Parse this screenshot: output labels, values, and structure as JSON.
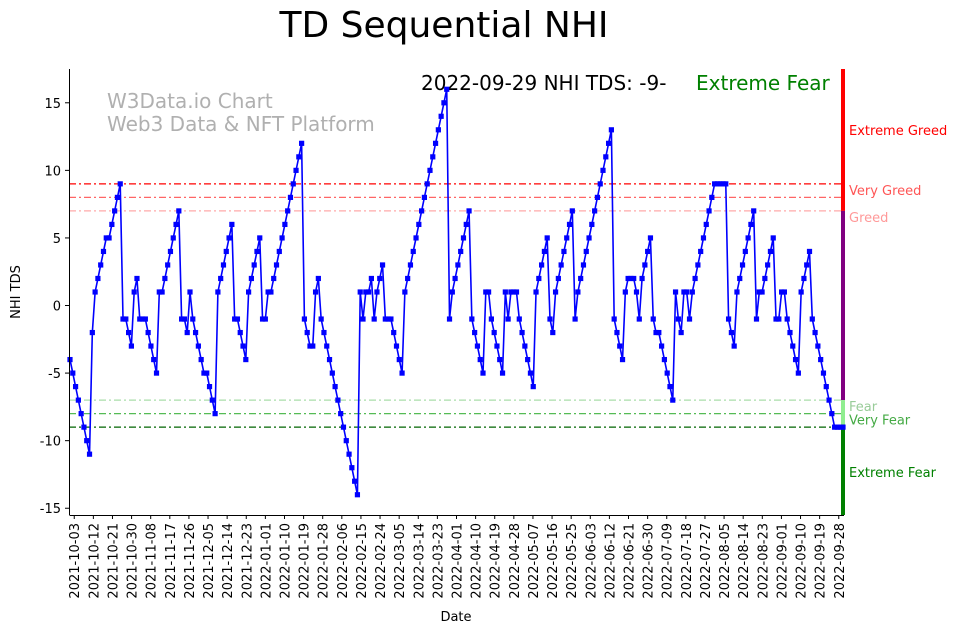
{
  "chart_data": {
    "type": "line",
    "title": "TD Sequential NHI",
    "xlabel": "Date",
    "ylabel": "NHI TDS",
    "xlim": [
      "2021-10-01",
      "2022-09-30"
    ],
    "ylim": [
      -15.5,
      17.5
    ],
    "y_ticks": [
      -15,
      -10,
      -5,
      0,
      5,
      10,
      15
    ],
    "x_ticks": [
      "2021-10-03",
      "2021-10-12",
      "2021-10-21",
      "2021-10-30",
      "2021-11-08",
      "2021-11-17",
      "2021-11-26",
      "2021-12-05",
      "2021-12-14",
      "2021-12-23",
      "2022-01-01",
      "2022-01-10",
      "2022-01-19",
      "2022-01-28",
      "2022-02-06",
      "2022-02-15",
      "2022-02-24",
      "2022-03-05",
      "2022-03-14",
      "2022-03-23",
      "2022-04-01",
      "2022-04-10",
      "2022-04-19",
      "2022-04-28",
      "2022-05-07",
      "2022-05-16",
      "2022-05-25",
      "2022-06-03",
      "2022-06-12",
      "2022-06-21",
      "2022-06-30",
      "2022-07-09",
      "2022-07-18",
      "2022-07-27",
      "2022-08-05",
      "2022-08-14",
      "2022-08-23",
      "2022-09-01",
      "2022-09-10",
      "2022-09-19",
      "2022-09-28"
    ],
    "grid": false,
    "watermark": [
      "W3Data.io Chart",
      "Web3 Data & NFT Platform"
    ],
    "status_text": "2022-09-29 NHI TDS: -9-",
    "status_label": "Extreme Fear",
    "status_color": "#008000",
    "line_color": "#0000ff",
    "levels": [
      {
        "value": 9,
        "label": "Very Greed",
        "color": "#ff0000",
        "label_color": "#ff5555"
      },
      {
        "value": 8,
        "label": "",
        "color": "#ff6666"
      },
      {
        "value": 7,
        "label": "Greed",
        "color": "#ffaaaa",
        "label_color": "#ff9999"
      },
      {
        "value": -7,
        "label": "Fear",
        "color": "#aaddaa",
        "label_color": "#99cc99"
      },
      {
        "value": -8,
        "label": "Very Fear",
        "color": "#55bb55",
        "label_color": "#44aa44"
      },
      {
        "value": -9,
        "label": "",
        "color": "#006400"
      }
    ],
    "side_bar": [
      {
        "from": 17.5,
        "to": 7,
        "color": "#ff0000",
        "label": "Extreme Greed",
        "label_value": 13
      },
      {
        "from": 7,
        "to": -7,
        "color": "#800080",
        "label": ""
      },
      {
        "from": -7,
        "to": -8.8,
        "color": "#90ee90",
        "label": ""
      },
      {
        "from": -8.8,
        "to": -15.5,
        "color": "#008000",
        "label": "Extreme Fear",
        "label_value": -12.3
      }
    ],
    "series": [
      {
        "name": "NHI TDS",
        "values": [
          -4,
          -5,
          -6,
          -7,
          -8,
          -9,
          -10,
          -11,
          -2,
          1,
          2,
          3,
          4,
          5,
          5,
          6,
          7,
          8,
          9,
          -1,
          -1,
          -2,
          -3,
          1,
          2,
          -1,
          -1,
          -1,
          -2,
          -3,
          -4,
          -5,
          1,
          1,
          2,
          3,
          4,
          5,
          6,
          7,
          -1,
          -1,
          -2,
          1,
          -1,
          -2,
          -3,
          -4,
          -5,
          -5,
          -6,
          -7,
          -8,
          1,
          2,
          3,
          4,
          5,
          6,
          -1,
          -1,
          -2,
          -3,
          -4,
          1,
          2,
          3,
          4,
          5,
          -1,
          -1,
          1,
          1,
          2,
          3,
          4,
          5,
          6,
          7,
          8,
          9,
          10,
          11,
          12,
          -1,
          -2,
          -3,
          -3,
          1,
          2,
          -1,
          -2,
          -3,
          -4,
          -5,
          -6,
          -7,
          -8,
          -9,
          -10,
          -11,
          -12,
          -13,
          -14,
          1,
          -1,
          1,
          1,
          2,
          -1,
          1,
          2,
          3,
          -1,
          -1,
          -1,
          -2,
          -3,
          -4,
          -5,
          1,
          2,
          3,
          4,
          5,
          6,
          7,
          8,
          9,
          10,
          11,
          12,
          13,
          14,
          15,
          16,
          -1,
          1,
          2,
          3,
          4,
          5,
          6,
          7,
          -1,
          -2,
          -3,
          -4,
          -5,
          1,
          1,
          -1,
          -2,
          -3,
          -4,
          -5,
          1,
          -1,
          1,
          1,
          1,
          -1,
          -2,
          -3,
          -4,
          -5,
          -6,
          1,
          2,
          3,
          4,
          5,
          -1,
          -2,
          1,
          2,
          3,
          4,
          5,
          6,
          7,
          -1,
          1,
          2,
          3,
          4,
          5,
          6,
          7,
          8,
          9,
          10,
          11,
          12,
          13,
          -1,
          -2,
          -3,
          -4,
          1,
          2,
          2,
          2,
          1,
          -1,
          2,
          3,
          4,
          5,
          -1,
          -2,
          -2,
          -3,
          -4,
          -5,
          -6,
          -7,
          1,
          -1,
          -2,
          1,
          1,
          -1,
          1,
          2,
          3,
          4,
          5,
          6,
          7,
          8,
          9,
          9,
          9,
          9,
          9,
          -1,
          -2,
          -3,
          1,
          2,
          3,
          4,
          5,
          6,
          7,
          -1,
          1,
          1,
          2,
          3,
          4,
          5,
          -1,
          -1,
          1,
          1,
          -1,
          -2,
          -3,
          -4,
          -5,
          1,
          2,
          3,
          4,
          -1,
          -2,
          -3,
          -4,
          -5,
          -6,
          -7,
          -8,
          -9,
          -9,
          -9,
          -9
        ]
      }
    ]
  }
}
